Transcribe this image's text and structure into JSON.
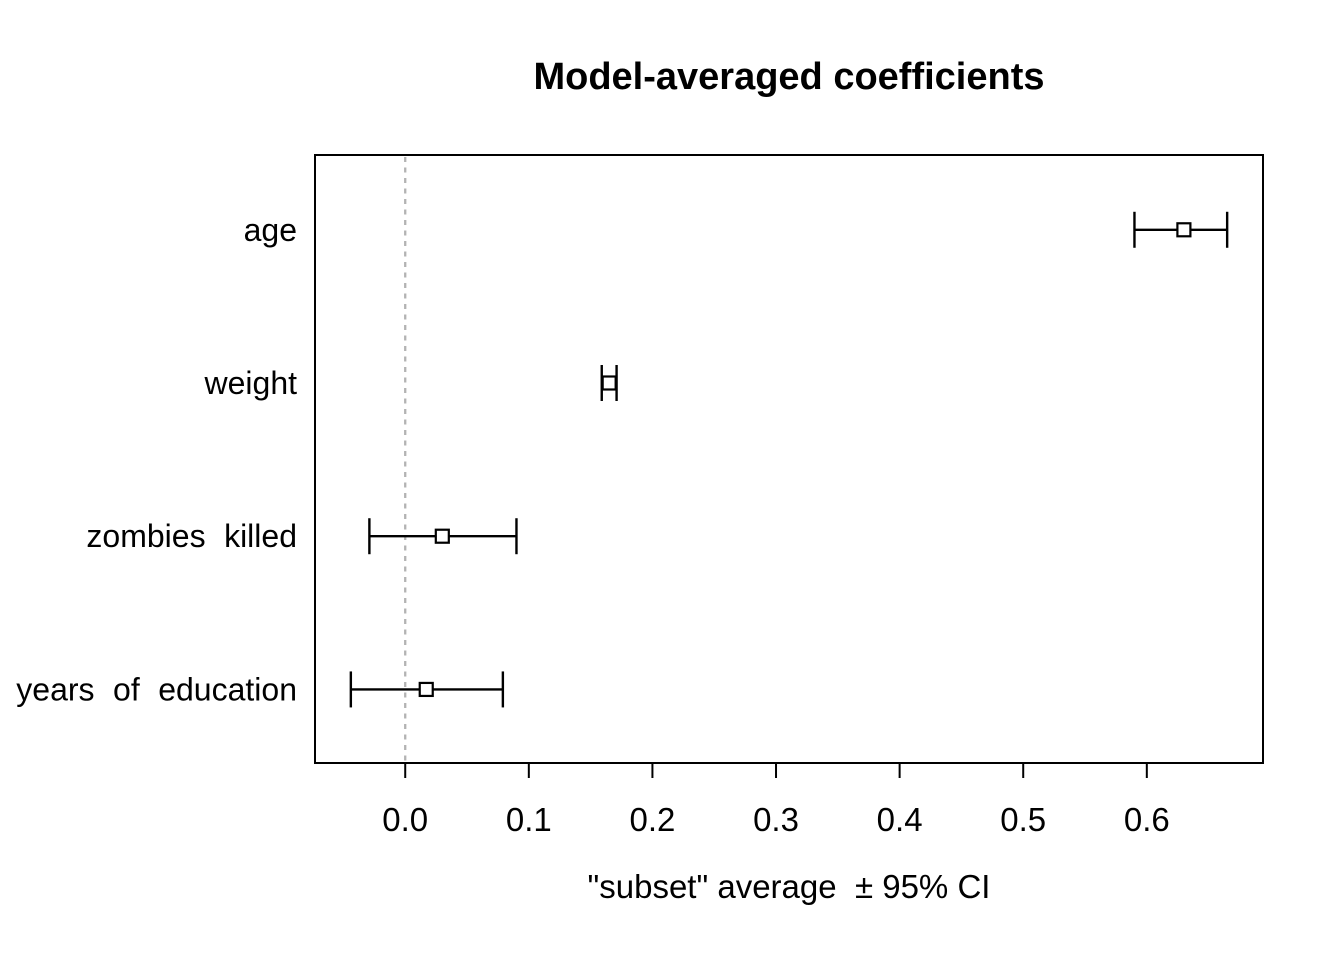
{
  "chart_data": {
    "type": "scatter",
    "subtype": "model-averaged-coefficient-plot-with-error-bars",
    "title": "Model-averaged coefficients",
    "xlabel": "\"subset\" average  ± 95% CI",
    "ylabel": "",
    "categories": [
      "age",
      "weight",
      "zombies killed",
      "years of education"
    ],
    "series": [
      {
        "name": "estimate",
        "values": [
          0.63,
          0.165,
          0.03,
          0.017
        ]
      },
      {
        "name": "ci_lower_95",
        "values": [
          0.59,
          0.159,
          -0.029,
          -0.044
        ]
      },
      {
        "name": "ci_upper_95",
        "values": [
          0.665,
          0.171,
          0.09,
          0.079
        ]
      }
    ],
    "x_ticks": [
      "0.0",
      "0.1",
      "0.2",
      "0.3",
      "0.4",
      "0.5",
      "0.6"
    ],
    "x_tick_values": [
      0,
      0.1,
      0.2,
      0.3,
      0.4,
      0.5,
      0.6
    ],
    "xlim": [
      -0.073,
      0.694
    ],
    "reference_line_x": 0,
    "grid": false,
    "legend": "none",
    "marker": "open-square",
    "colors": {
      "text": "#000000",
      "line": "#000000",
      "marker_fill": "#ffffff",
      "reference_line": "#b3b3b3",
      "plot_border": "#000000",
      "background": "#ffffff"
    }
  }
}
